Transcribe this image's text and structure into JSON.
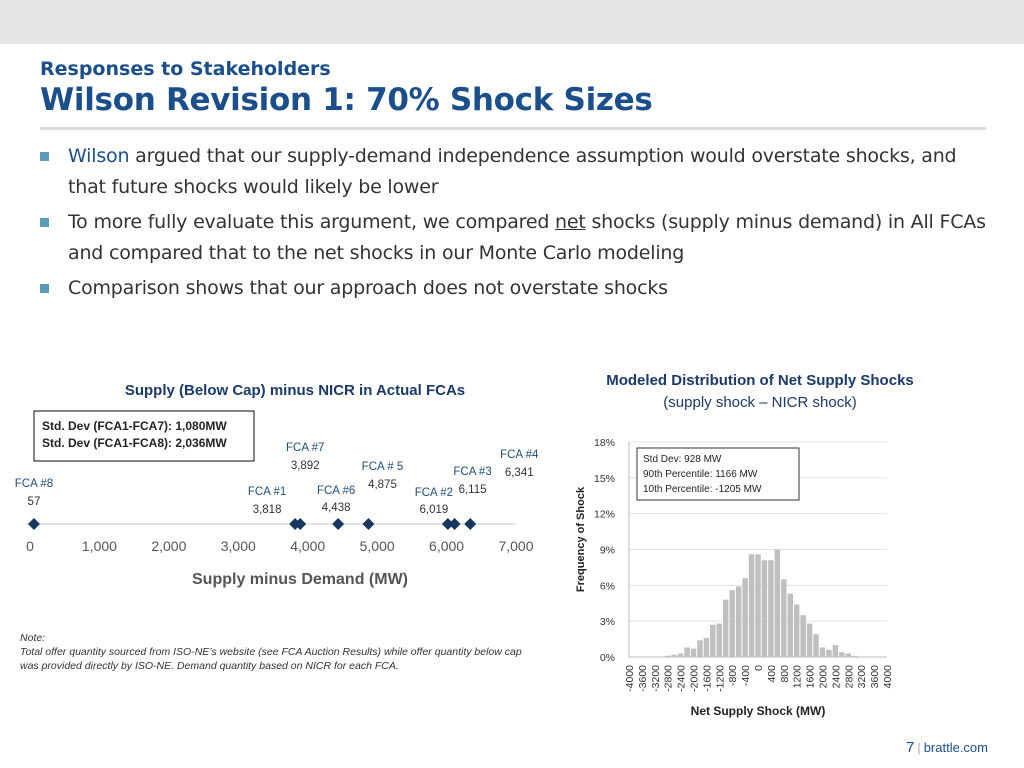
{
  "header": {
    "subtitle": "Responses to Stakeholders",
    "title": "Wilson Revision 1: 70% Shock Sizes"
  },
  "bullets": [
    {
      "parts": [
        {
          "text": "Wilson",
          "style": "blue"
        },
        {
          "text": " argued that our supply-demand independence assumption would overstate shocks, and that future shocks would likely be lower",
          "style": ""
        }
      ]
    },
    {
      "parts": [
        {
          "text": "To more fully evaluate this argument, we compared ",
          "style": ""
        },
        {
          "text": "net",
          "style": "u"
        },
        {
          "text": " shocks (supply minus demand) in All FCAs and compared that to the net shocks in our Monte Carlo modeling",
          "style": ""
        }
      ]
    },
    {
      "parts": [
        {
          "text": "Comparison shows that our approach does not overstate shocks",
          "style": ""
        }
      ]
    }
  ],
  "left_chart_title": "Supply (Below Cap) minus NICR in Actual FCAs",
  "right_chart_title": "Modeled Distribution of Net Supply Shocks",
  "right_chart_subtitle": "(supply shock – NICR shock)",
  "note": {
    "label": "Note:",
    "text": "Total offer quantity sourced from ISO-NE’s website (see FCA Auction Results) while offer quantity below cap was provided directly by ISO-NE.  Demand quantity based on NICR for each FCA."
  },
  "footer": {
    "page": "7",
    "site": "brattle.com"
  },
  "colors": {
    "accent": "#1b4f8c",
    "marker": "#17375e",
    "bar": "#bfbfbf",
    "bullet": "#5b9bb8"
  },
  "chart_data": [
    {
      "type": "scatter",
      "title": "",
      "xlabel": "Supply minus Demand (MW)",
      "xlim": [
        0,
        7000
      ],
      "xticks": [
        "0",
        "1,000",
        "2,000",
        "3,000",
        "4,000",
        "5,000",
        "6,000",
        "7,000"
      ],
      "stats_box": [
        "Std. Dev (FCA1-FCA7): 1,080MW",
        "Std. Dev (FCA1-FCA8): 2,036MW"
      ],
      "points": [
        {
          "name": "FCA #8",
          "label": "57",
          "x": 57
        },
        {
          "name": "FCA #1",
          "label": "3,818",
          "x": 3818
        },
        {
          "name": "FCA #7",
          "label": "3,892",
          "x": 3892
        },
        {
          "name": "FCA #6",
          "label": "4,438",
          "x": 4438
        },
        {
          "name": "FCA # 5",
          "label": "4,875",
          "x": 4875
        },
        {
          "name": "FCA #2",
          "label": "6,019",
          "x": 6019
        },
        {
          "name": "FCA #3",
          "label": "6,115",
          "x": 6115
        },
        {
          "name": "FCA #4",
          "label": "6,341",
          "x": 6341
        }
      ]
    },
    {
      "type": "bar",
      "xlabel": "Net Supply Shock (MW)",
      "ylabel": "Frequency of Shock",
      "ylim": [
        0,
        18
      ],
      "yticks": [
        "0%",
        "3%",
        "6%",
        "9%",
        "12%",
        "15%",
        "18%"
      ],
      "xticks": [
        "-4000",
        "-3600",
        "-3200",
        "-2800",
        "-2400",
        "-2000",
        "-1600",
        "-1200",
        "-800",
        "-400",
        "0",
        "400",
        "800",
        "1200",
        "1600",
        "2000",
        "2400",
        "2800",
        "3200",
        "3600",
        "4000"
      ],
      "stats_box": [
        "Std Dev: 928 MW",
        "90th Percentile:  1166 MW",
        "10th Percentile:  -1205 MW"
      ],
      "bin_width": 200,
      "bins": [
        {
          "x": -2800,
          "y": 0.1
        },
        {
          "x": -2600,
          "y": 0.2
        },
        {
          "x": -2400,
          "y": 0.3
        },
        {
          "x": -2200,
          "y": 0.8
        },
        {
          "x": -2000,
          "y": 0.7
        },
        {
          "x": -1800,
          "y": 1.4
        },
        {
          "x": -1600,
          "y": 1.6
        },
        {
          "x": -1400,
          "y": 2.7
        },
        {
          "x": -1200,
          "y": 2.8
        },
        {
          "x": -1000,
          "y": 4.8
        },
        {
          "x": -800,
          "y": 5.6
        },
        {
          "x": -600,
          "y": 5.9
        },
        {
          "x": -400,
          "y": 6.6
        },
        {
          "x": -200,
          "y": 8.6
        },
        {
          "x": 0,
          "y": 8.6
        },
        {
          "x": 200,
          "y": 8.1
        },
        {
          "x": 400,
          "y": 8.1
        },
        {
          "x": 600,
          "y": 9.0
        },
        {
          "x": 800,
          "y": 6.5
        },
        {
          "x": 1000,
          "y": 5.3
        },
        {
          "x": 1200,
          "y": 4.4
        },
        {
          "x": 1400,
          "y": 3.5
        },
        {
          "x": 1600,
          "y": 2.8
        },
        {
          "x": 1800,
          "y": 1.9
        },
        {
          "x": 2000,
          "y": 0.8
        },
        {
          "x": 2200,
          "y": 0.6
        },
        {
          "x": 2400,
          "y": 1.0
        },
        {
          "x": 2600,
          "y": 0.4
        },
        {
          "x": 2800,
          "y": 0.3
        },
        {
          "x": 3000,
          "y": 0.1
        }
      ]
    }
  ]
}
